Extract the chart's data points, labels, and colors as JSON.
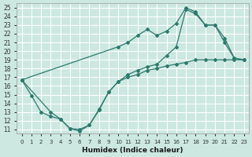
{
  "xlabel": "Humidex (Indice chaleur)",
  "bg_color": "#cce8e0",
  "grid_color": "#ffffff",
  "line_color": "#2d7a6e",
  "xlim": [
    -0.5,
    23.5
  ],
  "ylim": [
    10.5,
    25.5
  ],
  "xticks": [
    0,
    1,
    2,
    3,
    4,
    5,
    6,
    7,
    8,
    9,
    10,
    11,
    12,
    13,
    14,
    15,
    16,
    17,
    18,
    19,
    20,
    21,
    22,
    23
  ],
  "yticks": [
    11,
    12,
    13,
    14,
    15,
    16,
    17,
    18,
    19,
    20,
    21,
    22,
    23,
    24,
    25
  ],
  "line1_x": [
    0,
    1,
    2,
    3,
    4,
    5,
    6,
    7,
    8,
    9,
    10,
    11,
    12,
    13,
    14,
    15,
    16,
    17,
    18,
    19,
    20,
    21,
    22,
    23
  ],
  "line1_y": [
    16.7,
    14.9,
    13.0,
    12.5,
    12.2,
    11.1,
    11.0,
    11.5,
    13.3,
    15.3,
    16.5,
    17.0,
    17.3,
    17.8,
    18.0,
    18.3,
    18.5,
    18.7,
    19.0,
    19.0,
    19.0,
    19.0,
    19.0,
    19.0
  ],
  "line2_x": [
    0,
    10,
    11,
    12,
    13,
    14,
    15,
    16,
    17,
    18,
    19,
    20,
    21,
    22,
    23
  ],
  "line2_y": [
    16.7,
    20.5,
    21.0,
    21.8,
    22.5,
    21.8,
    22.3,
    23.2,
    25.0,
    24.5,
    23.0,
    23.0,
    21.5,
    19.2,
    19.0
  ],
  "line3_x": [
    0,
    3,
    4,
    5,
    6,
    7,
    8,
    9,
    10,
    11,
    12,
    13,
    14,
    15,
    16,
    17,
    18,
    19,
    20,
    21,
    22,
    23
  ],
  "line3_y": [
    16.7,
    13.0,
    12.2,
    11.1,
    10.8,
    11.5,
    13.2,
    15.3,
    16.5,
    17.3,
    17.8,
    18.2,
    18.5,
    19.5,
    20.5,
    24.8,
    24.3,
    23.0,
    23.0,
    21.0,
    19.2,
    19.0
  ]
}
